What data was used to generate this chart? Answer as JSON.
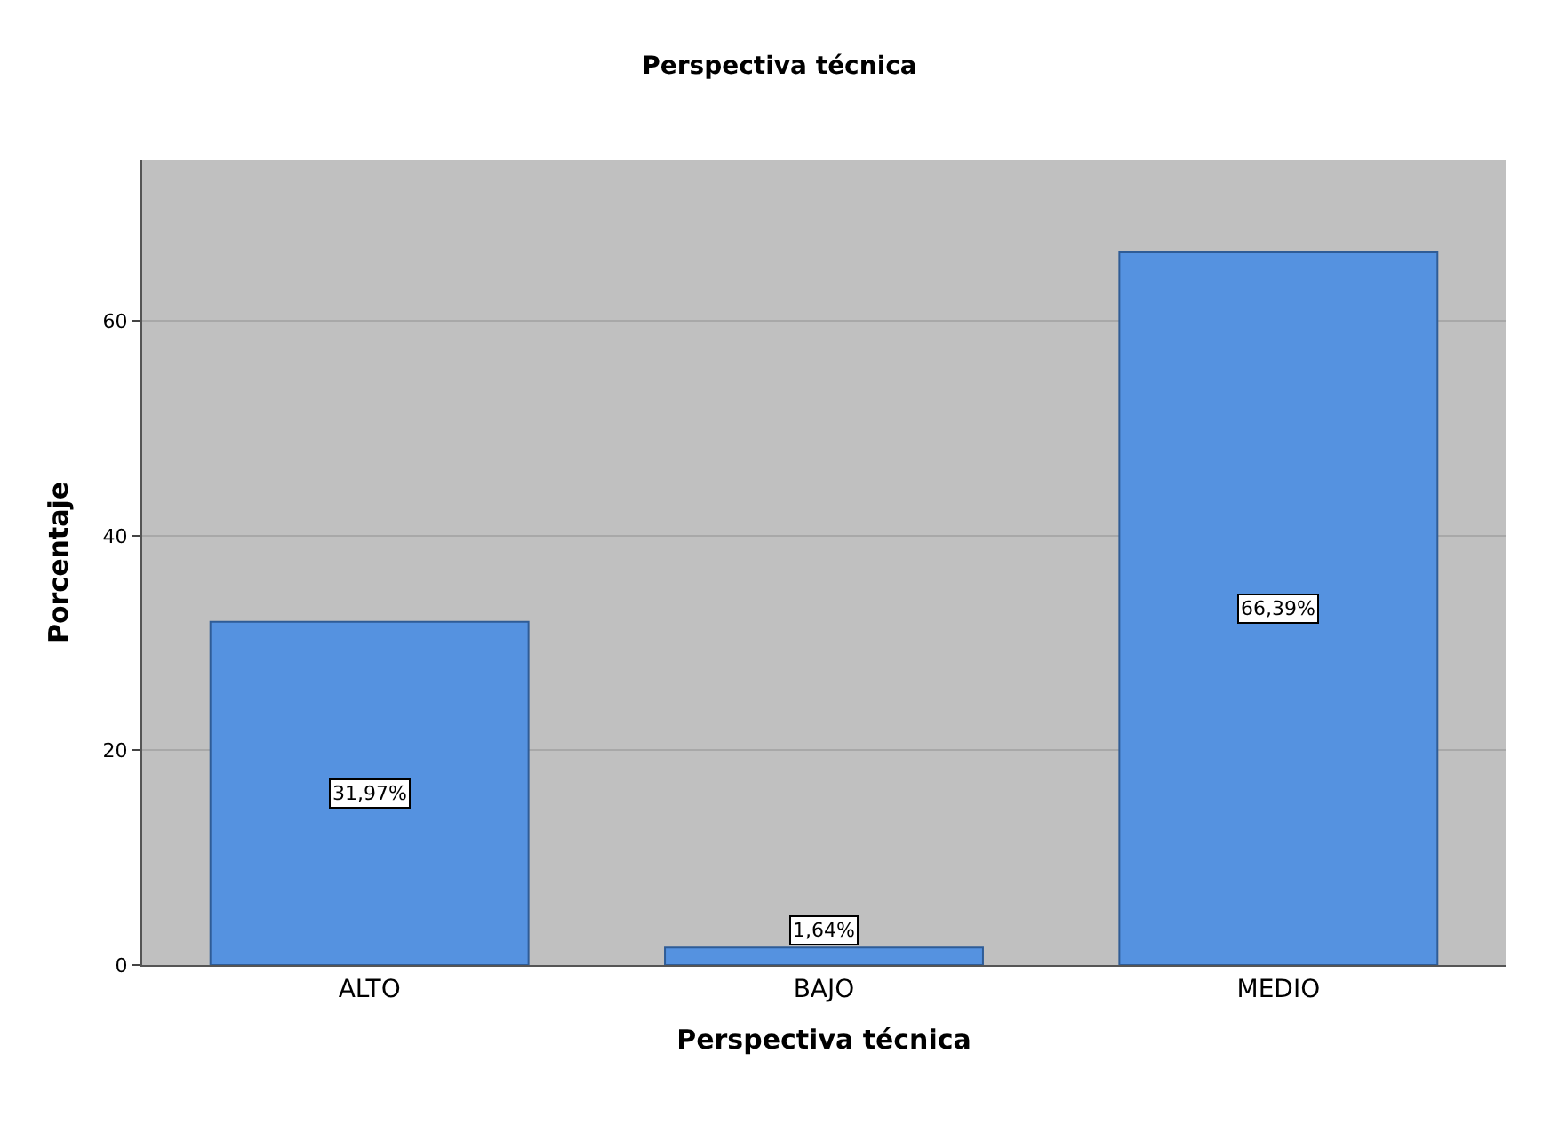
{
  "chart_data": {
    "type": "bar",
    "title": "Perspectiva técnica",
    "xlabel": "Perspectiva técnica",
    "ylabel": "Porcentaje",
    "categories": [
      "ALTO",
      "BAJO",
      "MEDIO"
    ],
    "values": [
      31.97,
      1.64,
      66.39
    ],
    "value_labels": [
      "31,97%",
      "1,64%",
      "66,39%"
    ],
    "color": "#5592e0",
    "ylim": [
      0,
      75
    ],
    "yticks": [
      0,
      20,
      40,
      60
    ],
    "grid": "y",
    "legend": false
  }
}
